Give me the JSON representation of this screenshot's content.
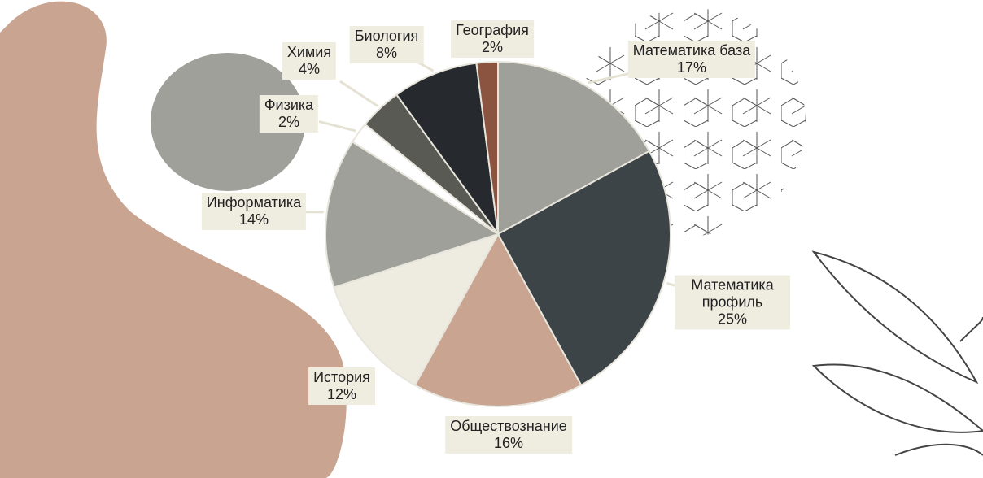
{
  "chart_data": {
    "type": "pie",
    "categories": [
      "Математика база",
      "Математика профиль",
      "Обществознание",
      "История",
      "Информатика",
      "Физика",
      "Химия",
      "Биология",
      "География"
    ],
    "values": [
      17,
      25,
      16,
      12,
      14,
      2,
      4,
      8,
      2
    ],
    "value_labels": [
      "17%",
      "25%",
      "16%",
      "12%",
      "14%",
      "2%",
      "4%",
      "8%",
      "2%"
    ],
    "colors": [
      "#a0a09a",
      "#3d4448",
      "#c9a491",
      "#eeebe0",
      "#a0a09a",
      "#ffffff",
      "#5a5a55",
      "#262a2e",
      "#8a5440"
    ]
  }
}
